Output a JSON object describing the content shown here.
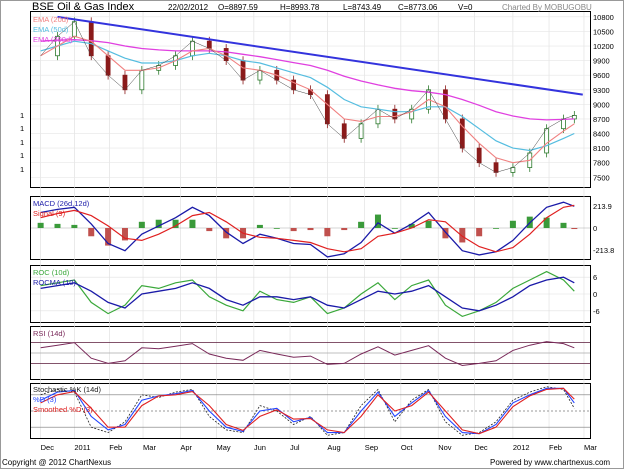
{
  "header": {
    "title": "BSE Oil & Gas Index",
    "date": "22/02/2012",
    "open": "O=8897.59",
    "high": "H=8993.78",
    "low": "L=8743.49",
    "close": "C=8773.06",
    "volume": "V=0",
    "charted_by": "Charted By MOBUGOBU"
  },
  "footer": {
    "copyright": "Copyright @ 2012 ChartNexus",
    "powered_by": "Powered by www.chartnexus.com"
  },
  "colors": {
    "candle_up": "#2d7a2d",
    "candle_down": "#8a1a1a",
    "trendline": "#3333dd",
    "ema20": "#f08080",
    "ema50": "#55bde0",
    "ema200": "#e040e0",
    "macd": "#1a1aa8",
    "signal": "#e02020",
    "hist_pos": "#3a9a3a",
    "hist_neg": "#c0504d",
    "roc": "#3aa83a",
    "rocma": "#1a1aa8",
    "rsi": "#7a2a5a",
    "stoch_k": "#222222",
    "stoch_d": "#2244ff",
    "stoch_sd": "#e02020",
    "frame": "#000000",
    "grid": "#bbbbbb"
  },
  "chart_data": [
    {
      "type": "candlestick",
      "panel": "price",
      "legend": [
        "EMA (20d)",
        "EMA (50d)",
        "EMA (200d)"
      ],
      "x_ticks": [
        "Dec",
        "2011",
        "Feb",
        "Mar",
        "Apr",
        "May",
        "Jun",
        "Jul",
        "Aug",
        "Sep",
        "Oct",
        "Nov",
        "Dec",
        "2012",
        "Feb",
        "Mar"
      ],
      "y_ticks": [
        10800,
        10500,
        10200,
        9900,
        9600,
        9300,
        9000,
        8700,
        8400,
        8100,
        7800,
        7500
      ],
      "left_axis_labels": [
        "1",
        "1",
        "1",
        "1",
        "1"
      ],
      "ylim": [
        7300,
        10900
      ],
      "close_path": {
        "x": [
          "2010-12-06",
          "2010-12-20",
          "2011-01-03",
          "2011-01-17",
          "2011-01-31",
          "2011-02-14",
          "2011-02-28",
          "2011-03-14",
          "2011-03-28",
          "2011-04-11",
          "2011-04-25",
          "2011-05-09",
          "2011-05-23",
          "2011-06-06",
          "2011-06-20",
          "2011-07-04",
          "2011-07-18",
          "2011-08-01",
          "2011-08-15",
          "2011-08-29",
          "2011-09-12",
          "2011-09-26",
          "2011-10-10",
          "2011-10-24",
          "2011-11-07",
          "2011-11-21",
          "2011-12-05",
          "2011-12-19",
          "2012-01-02",
          "2012-01-16",
          "2012-01-30",
          "2012-02-13",
          "2012-02-22"
        ],
        "close": [
          10000,
          10400,
          10700,
          10000,
          9600,
          9300,
          9700,
          9800,
          10000,
          10300,
          10150,
          9900,
          9500,
          9700,
          9500,
          9300,
          9200,
          8600,
          8300,
          8600,
          8900,
          8700,
          8900,
          9300,
          8700,
          8100,
          7800,
          7600,
          7700,
          8000,
          8500,
          8700,
          8773
        ]
      },
      "ema20": [
        10000,
        10200,
        10400,
        10300,
        10000,
        9700,
        9700,
        9750,
        9900,
        10100,
        10150,
        10000,
        9750,
        9700,
        9600,
        9450,
        9300,
        9000,
        8700,
        8650,
        8750,
        8750,
        8850,
        9100,
        8950,
        8550,
        8200,
        7900,
        7800,
        7850,
        8200,
        8450,
        8600
      ],
      "ema50": [
        10100,
        10200,
        10300,
        10250,
        10100,
        9950,
        9850,
        9850,
        9900,
        10000,
        10050,
        10000,
        9900,
        9850,
        9750,
        9650,
        9550,
        9350,
        9100,
        8950,
        8900,
        8850,
        8850,
        8950,
        8950,
        8750,
        8500,
        8250,
        8100,
        8050,
        8150,
        8300,
        8400
      ],
      "ema200": [
        10300,
        10320,
        10330,
        10310,
        10270,
        10200,
        10150,
        10120,
        10100,
        10100,
        10100,
        10080,
        10030,
        9980,
        9920,
        9860,
        9800,
        9700,
        9580,
        9480,
        9400,
        9330,
        9280,
        9250,
        9200,
        9100,
        8980,
        8850,
        8760,
        8700,
        8680,
        8690,
        8700
      ],
      "trendline": {
        "from": [
          "2010-12-20",
          10800
        ],
        "to": [
          "2012-02-29",
          9200
        ]
      }
    },
    {
      "type": "line",
      "panel": "macd",
      "legend": [
        "MACD (26d,12d)",
        "Signal (9)"
      ],
      "y_ticks": [
        213.9,
        0,
        -213.8
      ],
      "ylim": [
        -300,
        300
      ],
      "macd": [
        150,
        180,
        200,
        40,
        -150,
        -220,
        -60,
        20,
        100,
        200,
        120,
        -40,
        -150,
        -60,
        -100,
        -150,
        -160,
        -280,
        -250,
        -140,
        50,
        -50,
        40,
        150,
        -40,
        -220,
        -260,
        -230,
        -120,
        50,
        200,
        250,
        210
      ],
      "signal": [
        100,
        140,
        170,
        120,
        20,
        -100,
        -120,
        -60,
        20,
        120,
        150,
        60,
        -50,
        -90,
        -100,
        -120,
        -140,
        -200,
        -230,
        -200,
        -80,
        -50,
        0,
        80,
        60,
        -80,
        -180,
        -230,
        -190,
        -60,
        100,
        200,
        220
      ],
      "histogram": [
        50,
        40,
        30,
        -80,
        -170,
        -120,
        60,
        80,
        80,
        80,
        -30,
        -100,
        -100,
        30,
        0,
        -30,
        -20,
        -80,
        -20,
        60,
        130,
        0,
        40,
        70,
        -100,
        -140,
        -80,
        0,
        70,
        110,
        100,
        50,
        -10
      ]
    },
    {
      "type": "line",
      "panel": "roc",
      "legend": [
        "ROC (10d)",
        "ROCMA (10)"
      ],
      "y_ticks": [
        6,
        0,
        -6
      ],
      "ylim": [
        -10,
        10
      ],
      "roc": [
        3,
        4,
        5,
        -3,
        -7,
        -4,
        3,
        2,
        4,
        5,
        -1,
        -4,
        -6,
        1,
        -2,
        -3,
        -1,
        -7,
        -5,
        0,
        4,
        -2,
        3,
        5,
        -4,
        -8,
        -6,
        -3,
        2,
        5,
        8,
        5,
        1
      ],
      "rocma": [
        2,
        3,
        4,
        1,
        -3,
        -5,
        0,
        1,
        2,
        4,
        2,
        -2,
        -4,
        -1,
        -1,
        -2,
        -1,
        -4,
        -5,
        -2,
        1,
        0,
        1,
        3,
        -1,
        -5,
        -6,
        -4,
        -1,
        3,
        5,
        6,
        4
      ]
    },
    {
      "type": "line",
      "panel": "rsi",
      "legend": [
        "RSI (14d)"
      ],
      "ylim": [
        0,
        100
      ],
      "guides": [
        70,
        50,
        30
      ],
      "rsi": [
        60,
        65,
        70,
        40,
        30,
        35,
        60,
        58,
        63,
        68,
        48,
        40,
        36,
        55,
        48,
        42,
        44,
        28,
        30,
        48,
        62,
        46,
        55,
        64,
        40,
        26,
        30,
        35,
        55,
        65,
        72,
        68,
        60
      ]
    },
    {
      "type": "line",
      "panel": "stochastic",
      "legend": [
        "Stochastic %K (14d)",
        "%D (3)",
        "Smoothed %D (3)"
      ],
      "ylim": [
        0,
        100
      ],
      "guides": [
        80,
        50,
        20
      ],
      "k": [
        80,
        90,
        85,
        20,
        10,
        30,
        80,
        75,
        85,
        90,
        40,
        15,
        10,
        60,
        50,
        25,
        40,
        5,
        10,
        60,
        90,
        30,
        70,
        90,
        30,
        5,
        10,
        30,
        70,
        85,
        95,
        90,
        55
      ],
      "d": [
        70,
        85,
        88,
        40,
        15,
        25,
        70,
        78,
        82,
        88,
        50,
        20,
        12,
        50,
        55,
        30,
        38,
        10,
        10,
        50,
        85,
        40,
        65,
        88,
        40,
        10,
        8,
        25,
        65,
        80,
        92,
        92,
        65
      ],
      "smoothed_d": [
        65,
        80,
        86,
        55,
        20,
        20,
        60,
        78,
        80,
        86,
        60,
        25,
        14,
        40,
        52,
        35,
        36,
        15,
        10,
        40,
        80,
        50,
        60,
        85,
        50,
        15,
        8,
        20,
        58,
        78,
        90,
        92,
        72
      ]
    }
  ]
}
